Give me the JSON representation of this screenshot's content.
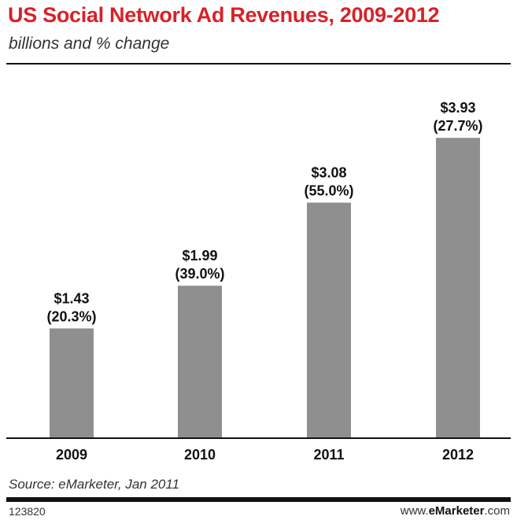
{
  "header": {
    "title": "US Social Network Ad Revenues, 2009-2012",
    "subtitle": "billions and % change"
  },
  "footer": {
    "source": "Source: eMarketer, Jan 2011",
    "chart_id": "123820",
    "brand_prefix": "www.",
    "brand_name": "eMarketer",
    "brand_suffix": ".com"
  },
  "colors": {
    "title": "#d92127",
    "bar": "#8f8f8f",
    "text": "#111111"
  },
  "chart_data": {
    "type": "bar",
    "title": "US Social Network Ad Revenues, 2009-2012",
    "subtitle": "billions and % change",
    "xlabel": "",
    "ylabel": "",
    "categories": [
      "2009",
      "2010",
      "2011",
      "2012"
    ],
    "values": [
      1.43,
      1.99,
      3.08,
      3.93
    ],
    "value_labels": [
      "$1.43",
      "$1.99",
      "$3.08",
      "$3.93"
    ],
    "change_labels": [
      "(20.3%)",
      "(39.0%)",
      "(55.0%)",
      "(27.7%)"
    ],
    "ylim": [
      0,
      4.5
    ],
    "grid": false,
    "legend": "none"
  }
}
